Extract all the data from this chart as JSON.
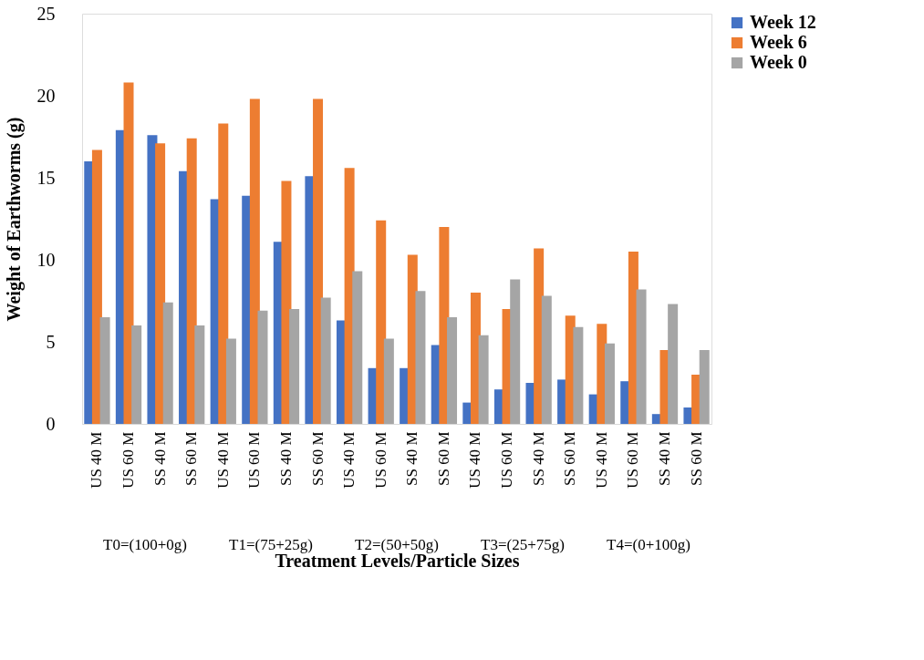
{
  "chart_data": {
    "type": "bar",
    "categories": [
      "US 40 M",
      "US 60 M",
      "SS 40 M",
      "SS 60 M",
      "US 40 M",
      "US 60 M",
      "SS 40 M",
      "SS 60 M",
      "US 40 M",
      "US 60 M",
      "SS 40 M",
      "SS 60 M",
      "US 40 M",
      "US 60 M",
      "SS 40 M",
      "SS 60 M",
      "US 40 M",
      "US 60 M",
      "SS 40 M",
      "SS 60 M"
    ],
    "series": [
      {
        "name": "Week 12",
        "color": "#4472c4",
        "values": [
          16.0,
          17.9,
          17.6,
          15.4,
          13.7,
          13.9,
          11.1,
          15.1,
          6.3,
          3.4,
          3.4,
          4.8,
          1.3,
          2.1,
          2.5,
          2.7,
          1.8,
          2.6,
          0.6,
          1.0
        ]
      },
      {
        "name": "Week 6",
        "color": "#ed7d31",
        "values": [
          16.7,
          20.8,
          17.1,
          17.4,
          18.3,
          19.8,
          14.8,
          19.8,
          15.6,
          12.4,
          10.3,
          12.0,
          8.0,
          7.0,
          10.7,
          6.6,
          6.1,
          10.5,
          4.5,
          3.0
        ]
      },
      {
        "name": "Week 0",
        "color": "#a5a5a5",
        "values": [
          6.5,
          6.0,
          7.4,
          6.0,
          5.2,
          6.9,
          7.0,
          7.7,
          9.3,
          5.2,
          8.1,
          6.5,
          5.4,
          8.8,
          7.8,
          5.9,
          4.9,
          8.2,
          7.3,
          4.5
        ]
      }
    ],
    "ylim": [
      0,
      25
    ],
    "yticks": [
      0,
      5,
      10,
      15,
      20,
      25
    ],
    "ylabel": "Weight of Earthworms (g)",
    "xlabel": "Treatment Levels/Particle Sizes",
    "annotations": [
      "T0=(100+0g)",
      "T1=(75+25g)",
      "T2=(50+50g)",
      "T3=(25+75g)",
      "T4=(0+100g)"
    ],
    "legend": "right",
    "grid": false
  }
}
